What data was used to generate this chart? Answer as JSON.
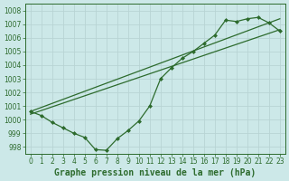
{
  "xlabel": "Graphe pression niveau de la mer (hPa)",
  "bg_color": "#cce8e8",
  "grid_color": "#b8d4d4",
  "line_color": "#2d6b2d",
  "xlim": [
    -0.5,
    23.5
  ],
  "ylim": [
    997.5,
    1008.5
  ],
  "yticks": [
    998,
    999,
    1000,
    1001,
    1002,
    1003,
    1004,
    1005,
    1006,
    1007,
    1008
  ],
  "xticks": [
    0,
    1,
    2,
    3,
    4,
    5,
    6,
    7,
    8,
    9,
    10,
    11,
    12,
    13,
    14,
    15,
    16,
    17,
    18,
    19,
    20,
    21,
    22,
    23
  ],
  "line_marked_x": [
    0,
    1,
    2,
    3,
    4,
    5,
    6,
    7,
    8,
    9,
    10,
    11,
    12,
    13,
    14,
    15,
    16,
    17,
    18,
    19,
    20,
    21,
    22,
    23
  ],
  "line_marked_y": [
    1000.6,
    1000.3,
    999.8,
    999.4,
    999.0,
    998.7,
    997.8,
    997.75,
    998.6,
    999.2,
    999.9,
    1001.0,
    1003.0,
    1003.8,
    1004.5,
    1005.0,
    1005.6,
    1006.2,
    1007.3,
    1007.2,
    1007.4,
    1007.5,
    1007.1,
    1006.5
  ],
  "tick_fontsize": 5.5,
  "xlabel_fontsize": 7,
  "marker": "D",
  "markersize": 2.0,
  "linewidth": 0.9
}
